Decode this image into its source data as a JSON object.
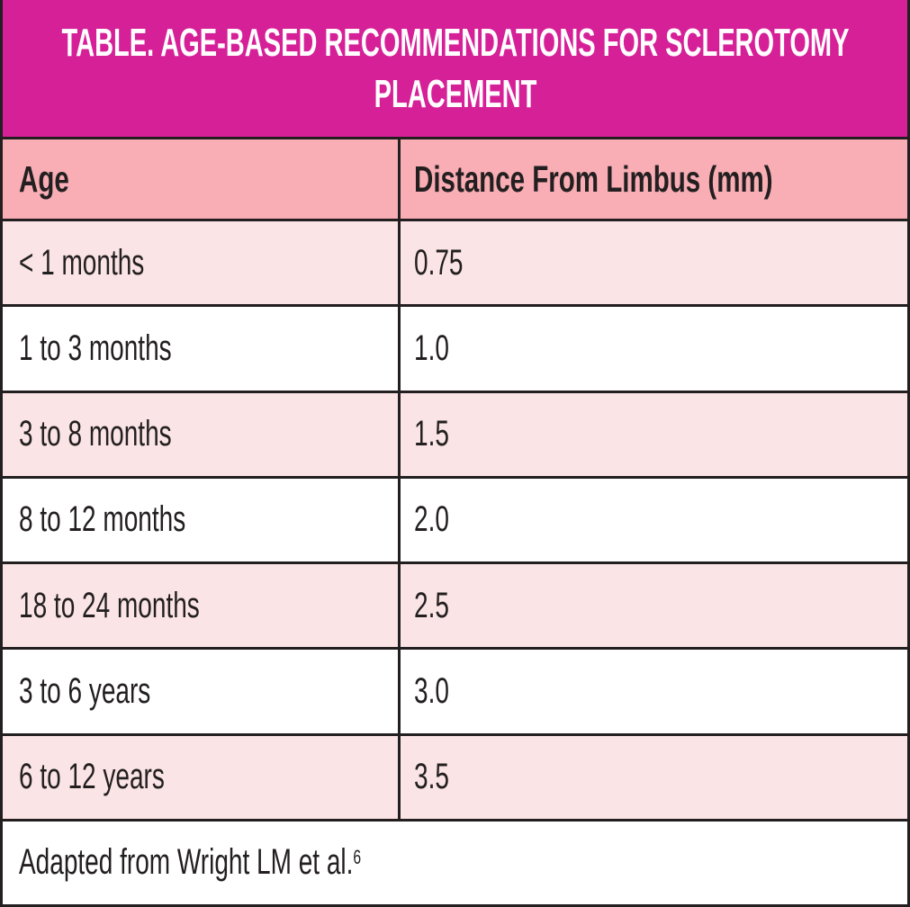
{
  "table": {
    "title": "TABLE. AGE-BASED RECOMMENDATIONS FOR SCLEROTOMY PLACEMENT",
    "columns": [
      "Age",
      "Distance From Limbus (mm)"
    ],
    "rows": [
      {
        "age": "< 1 months",
        "distance": "0.75"
      },
      {
        "age": "1 to 3 months",
        "distance": "1.0"
      },
      {
        "age": "3 to 8 months",
        "distance": "1.5"
      },
      {
        "age": "8 to 12 months",
        "distance": "2.0"
      },
      {
        "age": "18 to 24 months",
        "distance": "2.5"
      },
      {
        "age": "3 to 6 years",
        "distance": "3.0"
      },
      {
        "age": "6 to 12 years",
        "distance": "3.5"
      }
    ],
    "footnote": {
      "text": "Adapted from Wright LM et al.",
      "reference_mark": "6"
    }
  },
  "colors": {
    "title_bar": "#d62098",
    "title_text": "#ffffff",
    "header_row": "#f8aeb4",
    "row_alt": "#fae4e5",
    "row_white": "#ffffff",
    "border": "#231f20",
    "text": "#231f20"
  },
  "chart_data": {
    "type": "table",
    "title": "TABLE. AGE-BASED RECOMMENDATIONS FOR SCLEROTOMY PLACEMENT",
    "columns": [
      "Age",
      "Distance From Limbus (mm)"
    ],
    "rows": [
      [
        "< 1 months",
        0.75
      ],
      [
        "1 to 3 months",
        1.0
      ],
      [
        "3 to 8 months",
        1.5
      ],
      [
        "8 to 12 months",
        2.0
      ],
      [
        "18 to 24 months",
        2.5
      ],
      [
        "3 to 6 years",
        3.0
      ],
      [
        "6 to 12 years",
        3.5
      ]
    ],
    "footnote": "Adapted from Wright LM et al.6",
    "layout_hints": {
      "title_bar_color": "magenta",
      "zebra_striping": "odd rows light pink, even rows white",
      "grid": "dark 3px rules between rows and between the two columns"
    }
  }
}
